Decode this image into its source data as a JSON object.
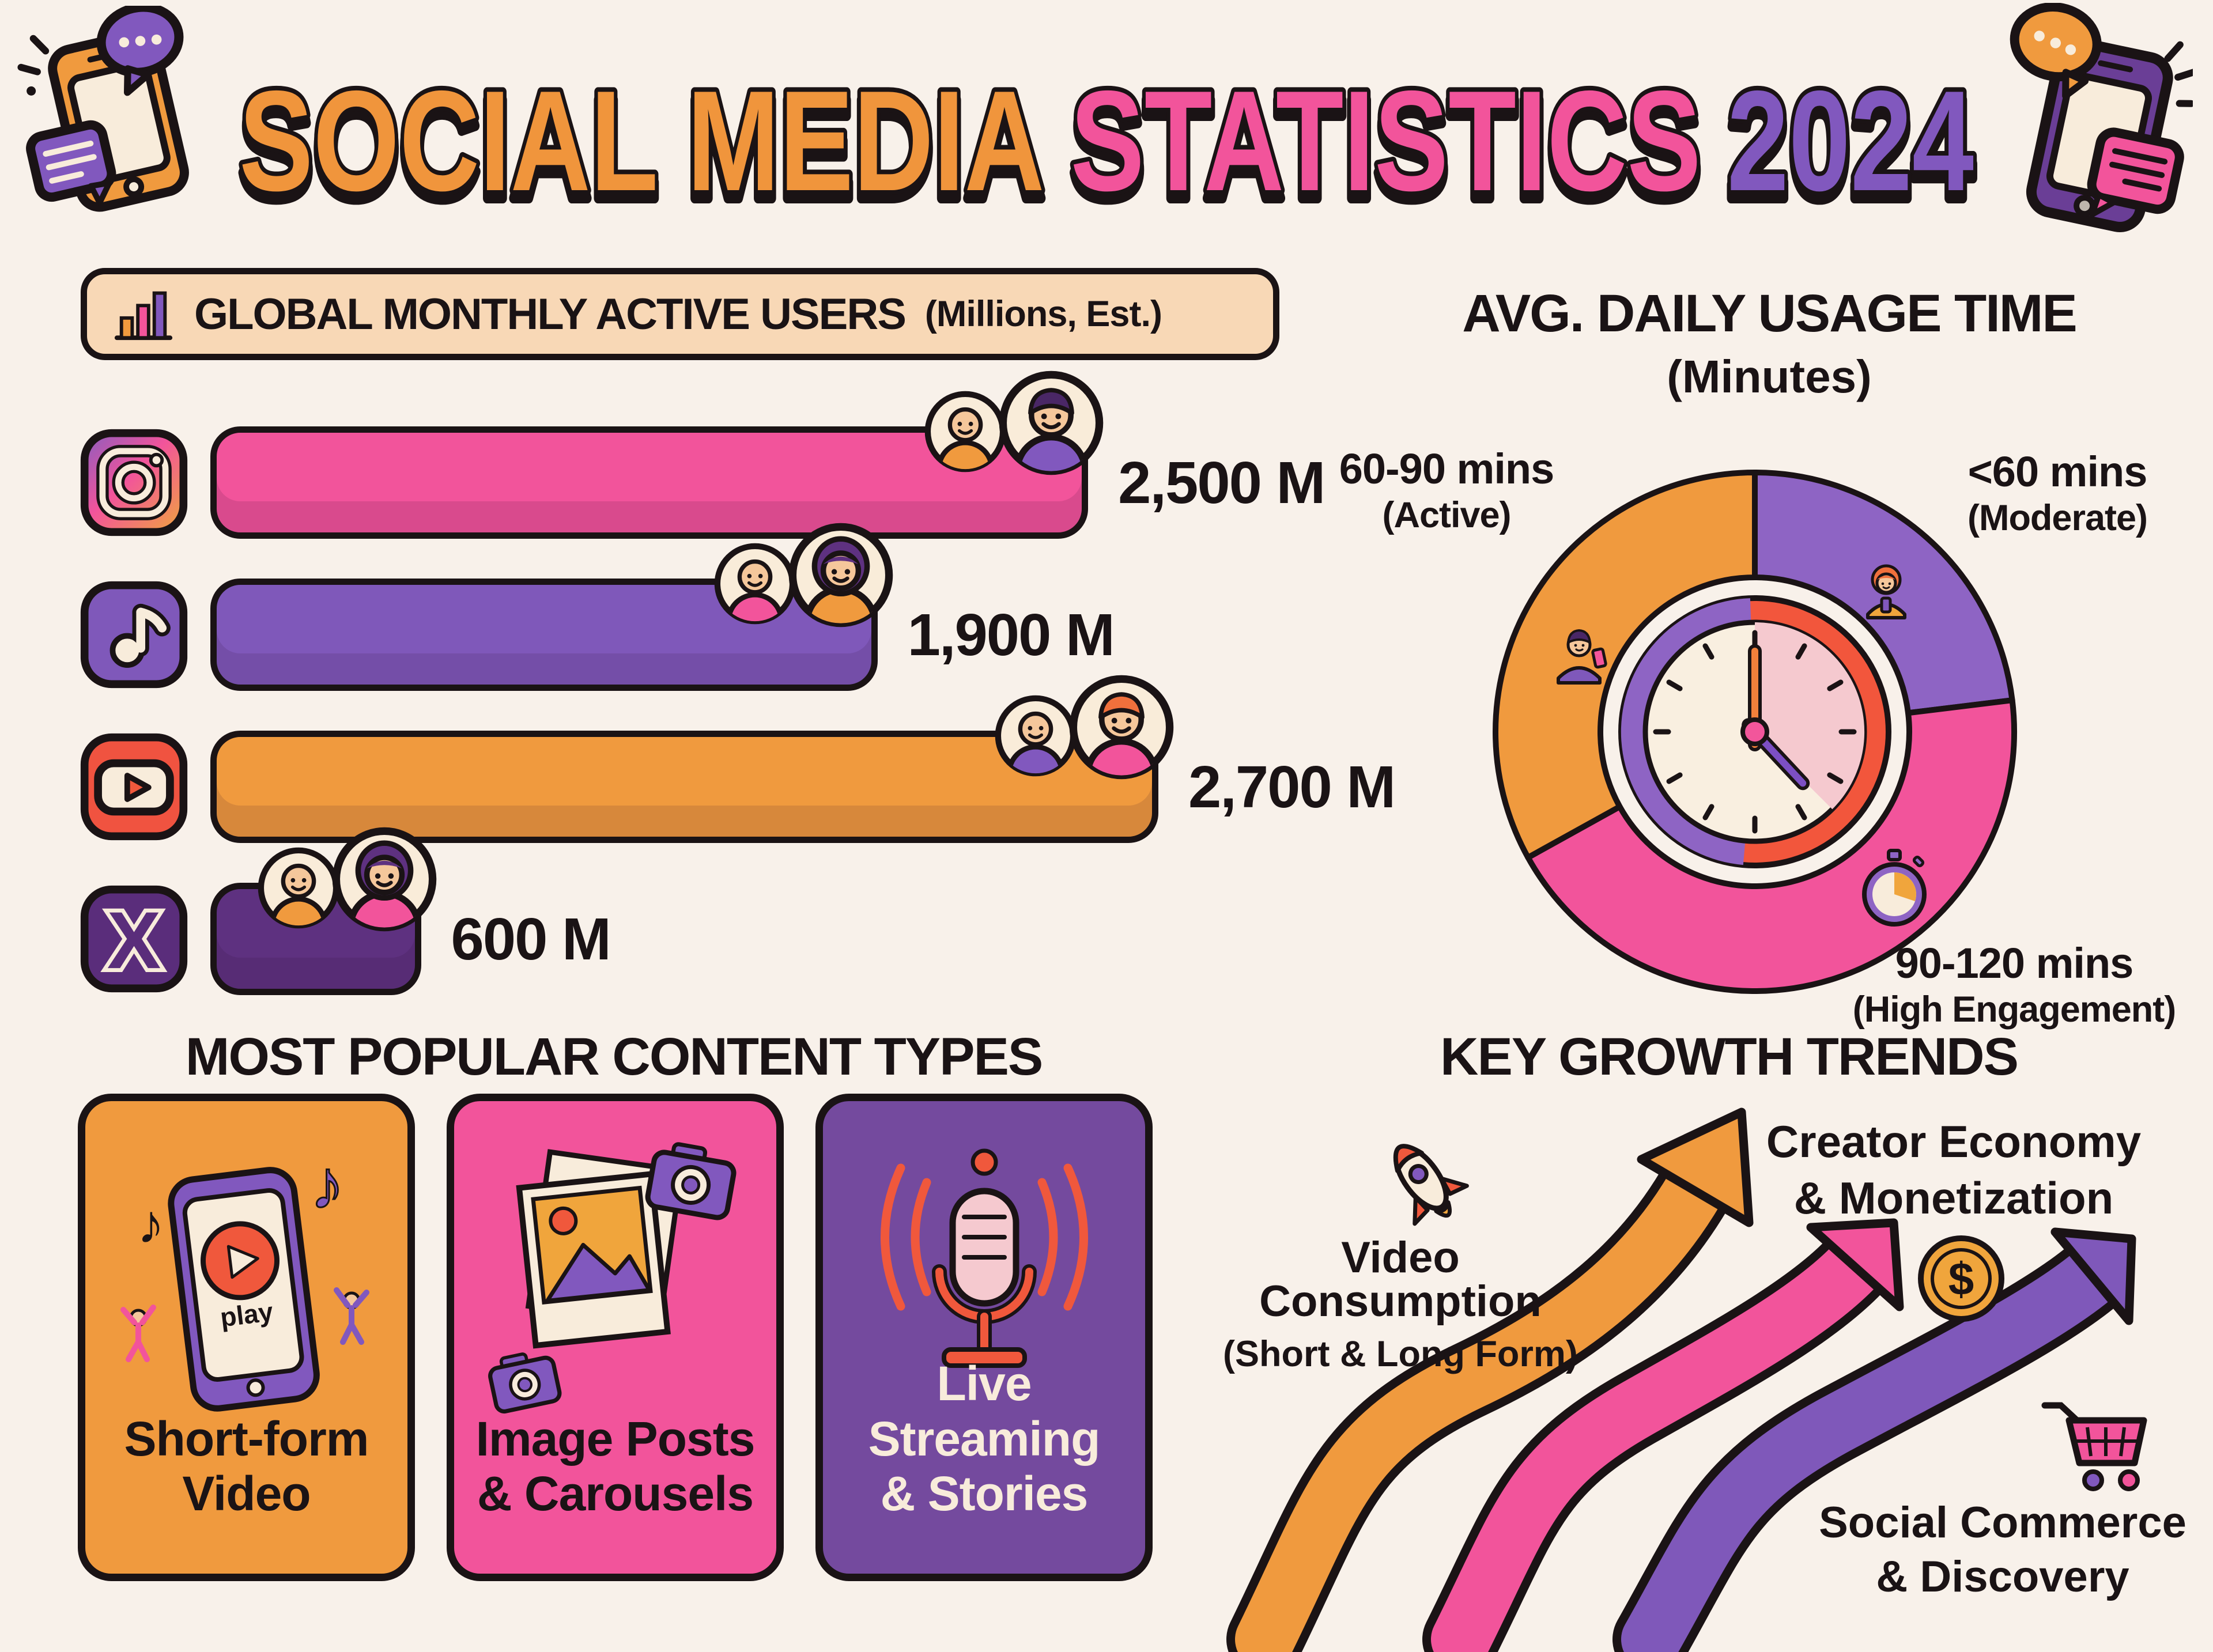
{
  "title": {
    "word1": "SOCIAL MEDIA",
    "word2": "STATISTICS",
    "word3": "2024"
  },
  "palette": {
    "background": "#F8F1EA",
    "ink": "#1A1315",
    "orange": "#F09A3E",
    "pink": "#F2549B",
    "purple": "#7F58BA",
    "purple_dark": "#5E3180",
    "red": "#F05340",
    "peach": "#F8D8B6",
    "cream": "#F8ECDB"
  },
  "users_chart": {
    "header": "GLOBAL MONTHLY ACTIVE USERS",
    "header_suffix": "(Millions, Est.)",
    "max_value": 2700,
    "rows": [
      {
        "platform": "Instagram",
        "value": 2500,
        "label": "2,500 M",
        "bar_color": "#F2549B"
      },
      {
        "platform": "TikTok",
        "value": 1900,
        "label": "1,900 M",
        "bar_color": "#7F58BA"
      },
      {
        "platform": "YouTube",
        "value": 2700,
        "label": "2,700 M",
        "bar_color": "#F09A3E"
      },
      {
        "platform": "X",
        "value": 600,
        "label": "600 M",
        "bar_color": "#5E3180"
      }
    ]
  },
  "usage_chart": {
    "title": "AVG. DAILY USAGE TIME",
    "subtitle": "(Minutes)",
    "segments": [
      {
        "label": "<60 mins",
        "sublabel": "(Moderate)",
        "color": "#8E64C4",
        "start_deg": 0,
        "end_deg": 83
      },
      {
        "label": "90-120 mins",
        "sublabel": "(High Engagement)",
        "color": "#F2549B",
        "start_deg": 83,
        "end_deg": 241
      },
      {
        "label": "60-90 mins",
        "sublabel": "(Active)",
        "color": "#F09A3E",
        "start_deg": 241,
        "end_deg": 360
      }
    ]
  },
  "content_types": {
    "title": "MOST POPULAR CONTENT TYPES",
    "play_label": "play",
    "cards": [
      {
        "line1": "Short-form",
        "line2": "Video",
        "color": "#F09A3E",
        "text_color": "#1A1315"
      },
      {
        "line1": "Image Posts",
        "line2": "& Carousels",
        "color": "#F2549B",
        "text_color": "#1A1315"
      },
      {
        "line1": "Live Streaming",
        "line2": "& Stories",
        "color": "#744A9E",
        "text_color": "#F8ECDB"
      }
    ]
  },
  "growth_trends": {
    "title": "KEY GROWTH TRENDS",
    "items": [
      {
        "line1": "Video Consumption",
        "line2": "(Short & Long Form)",
        "arrow_color": "#F09A3E",
        "icon": "rocket-icon"
      },
      {
        "line1": "Creator Economy",
        "line2": "& Monetization",
        "arrow_color": "#F2549B",
        "icon": "coin-icon"
      },
      {
        "line1": "Social Commerce",
        "line2": "& Discovery",
        "arrow_color": "#7F58BA",
        "icon": "cart-icon"
      }
    ]
  },
  "chart_data": [
    {
      "type": "bar",
      "orientation": "horizontal",
      "title": "GLOBAL MONTHLY ACTIVE USERS (Millions, Est.)",
      "categories": [
        "Instagram",
        "TikTok",
        "YouTube",
        "X"
      ],
      "values": [
        2500,
        1900,
        2700,
        600
      ],
      "value_labels": [
        "2,500 M",
        "1,900 M",
        "2,700 M",
        "600 M"
      ],
      "unit": "millions of users",
      "xlim": [
        0,
        2700
      ],
      "bar_colors": [
        "#F2549B",
        "#7F58BA",
        "#F09A3E",
        "#5E3180"
      ]
    },
    {
      "type": "pie",
      "title": "AVG. DAILY USAGE TIME (Minutes)",
      "labels": [
        "<60 mins (Moderate)",
        "90-120 mins (High Engagement)",
        "60-90 mins (Active)"
      ],
      "values_percent": [
        23,
        44,
        33
      ],
      "colors": [
        "#8E64C4",
        "#F2549B",
        "#F09A3E"
      ],
      "legend_position": "around",
      "center_icon": "clock showing 7 o'clock"
    }
  ]
}
